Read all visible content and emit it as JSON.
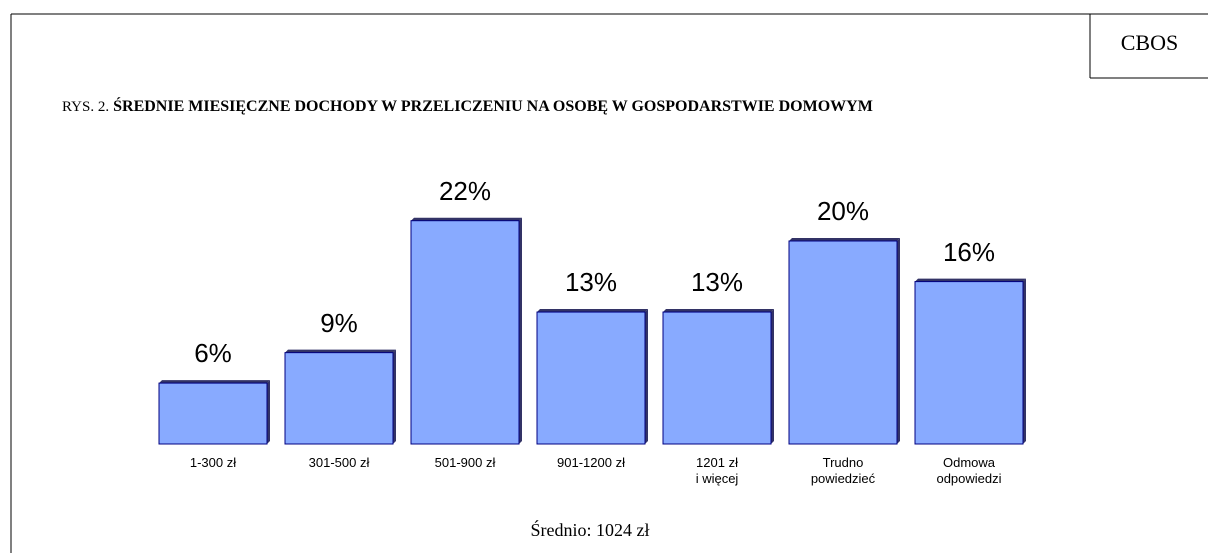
{
  "chart_data": {
    "type": "bar",
    "source": "CBOS",
    "figure_label": "RYS. 2.",
    "title": "ŚREDNIE MIESIĘCZNE DOCHODY W PRZELICZENIU NA OSOBĘ W GOSPODARSTWIE DOMOWYM",
    "categories": [
      "1-300 zł",
      "301-500 zł",
      "501-900 zł",
      "901-1200 zł",
      "1201 zł\ni więcej",
      "Trudno\npowiedzieć",
      "Odmowa\nodpowiedzi"
    ],
    "values": [
      6,
      9,
      22,
      13,
      13,
      20,
      16
    ],
    "value_labels": [
      "6%",
      "9%",
      "22%",
      "13%",
      "13%",
      "20%",
      "16%"
    ],
    "color": "#88aaff",
    "footer": "Średnio: 1024 zł"
  }
}
